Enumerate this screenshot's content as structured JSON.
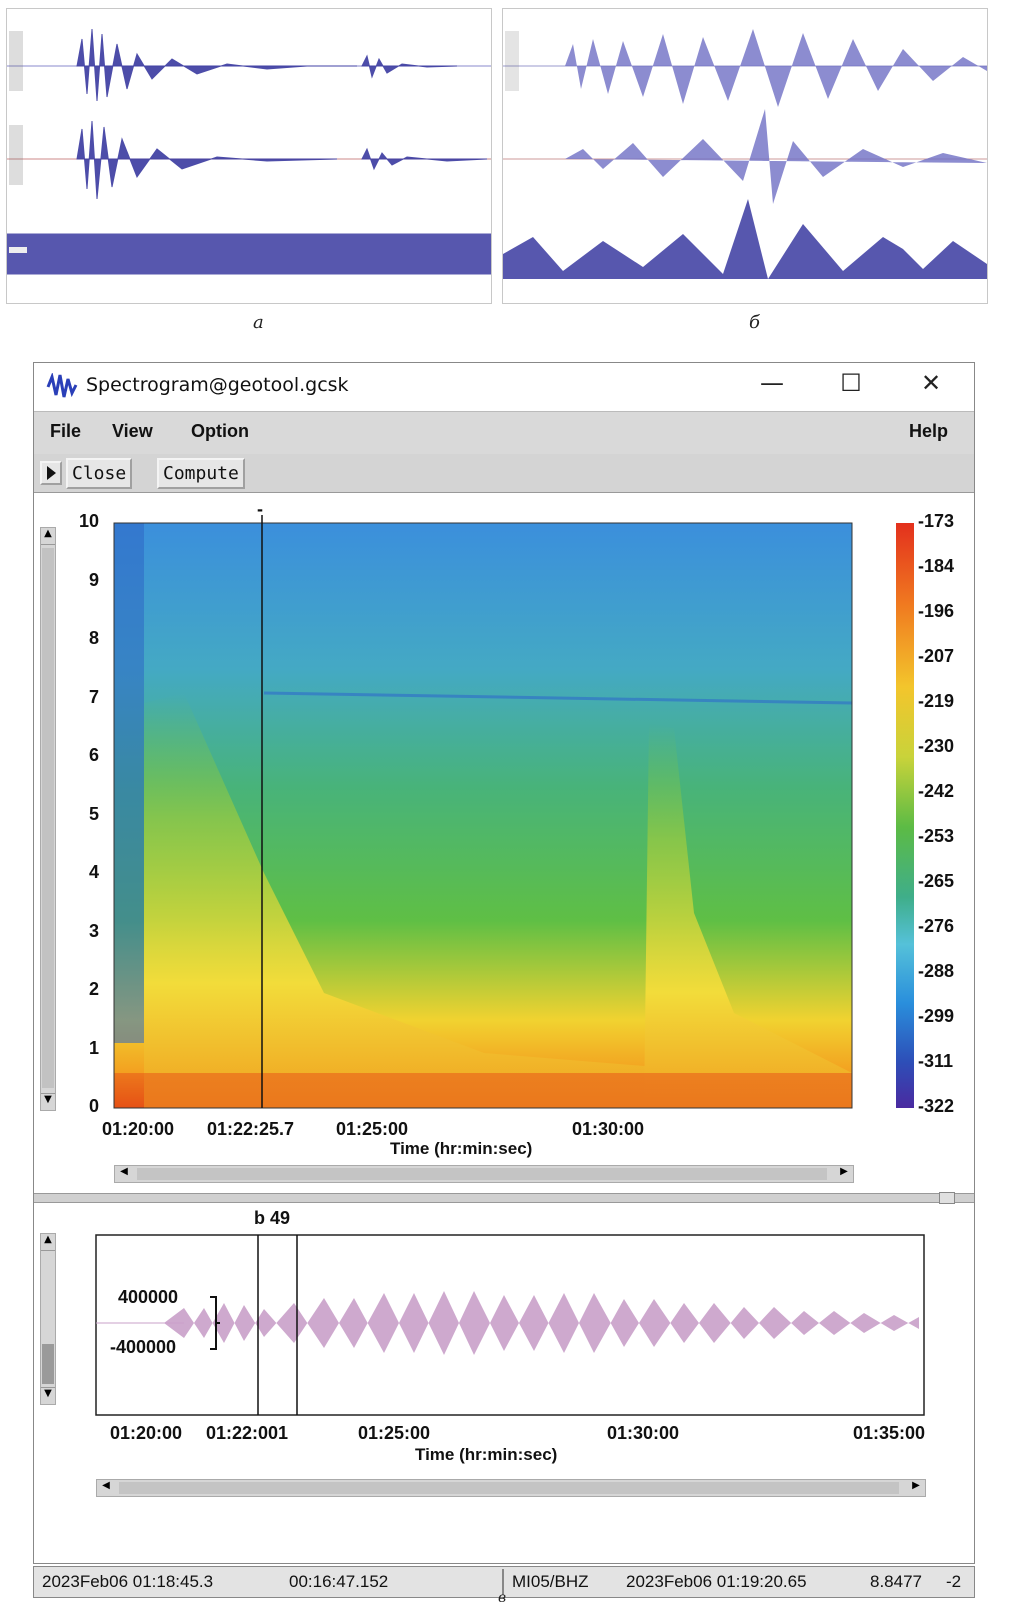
{
  "captions": {
    "a": "а",
    "b": "б",
    "c": "в"
  },
  "window": {
    "title": "Spectrogram@geotool.gcsk",
    "buttons": {
      "minimize": "—",
      "maximize": "☐",
      "close": "✕"
    }
  },
  "menu": {
    "file": "File",
    "view": "View",
    "option": "Option",
    "help": "Help"
  },
  "toolbar": {
    "close_label": "Close",
    "compute_label": "Compute"
  },
  "spectrogram": {
    "y_ticks": [
      "10",
      "9",
      "8",
      "7",
      "6",
      "5",
      "4",
      "3",
      "2",
      "1",
      "0"
    ],
    "x_ticks": [
      "01:20:00",
      "01:22:25.7",
      "01:25:00",
      "01:30:00"
    ],
    "xlabel": "Time (hr:min:sec)",
    "cursor_marker": "-",
    "colorbar": [
      "-173",
      "-184",
      "-196",
      "-207",
      "-219",
      "-230",
      "-242",
      "-253",
      "-265",
      "-276",
      "-288",
      "-299",
      "-311",
      "-322"
    ]
  },
  "waveform": {
    "phase_label": "b 49",
    "amp_top": "400000",
    "amp_bottom": "-400000",
    "x_ticks": [
      "01:20:00",
      "01:22:001",
      "01:25:00",
      "01:30:00",
      "01:35:00"
    ],
    "xlabel": "Time (hr:min:sec)"
  },
  "statusbar": {
    "start": "2023Feb06 01:18:45.3",
    "duration": "00:16:47.152",
    "station": "MI05/BHZ",
    "pick_time": "2023Feb06 01:19:20.65",
    "value": "8.8477",
    "extra": "-2"
  },
  "colors": {
    "trace": "#3a3aa0",
    "trace_pink": "#c9a0c9",
    "bg": "#ffffff"
  }
}
